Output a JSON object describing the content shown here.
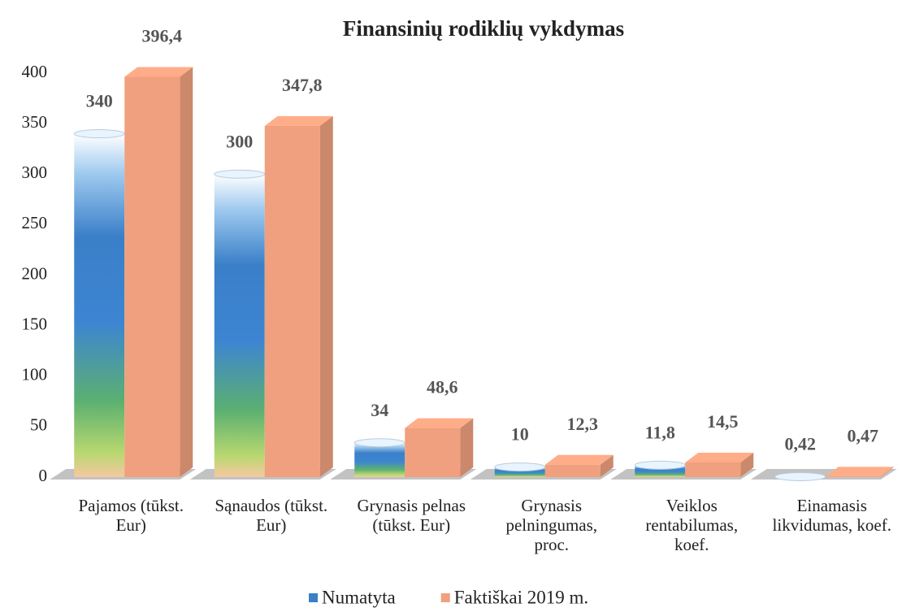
{
  "chart_data": {
    "type": "bar",
    "title": "Finansinių rodiklių vykdymas",
    "categories": [
      "Pajamos (tūkst. Eur)",
      "Sąnaudos (tūkst. Eur)",
      "Grynasis pelnas (tūkst. Eur)",
      "Grynasis pelningumas, proc.",
      "Veiklos rentabilumas, koef.",
      "Einamasis likvidumas, koef."
    ],
    "series": [
      {
        "name": "Numatyta",
        "color": "#3a7fc8",
        "values": [
          340,
          300,
          34,
          10,
          11.8,
          0.42
        ],
        "value_labels": [
          "340",
          "300",
          "34",
          "10",
          "11,8",
          "0,42"
        ]
      },
      {
        "name": "Faktiškai 2019 m.",
        "color": "#f0a07e",
        "values": [
          396.4,
          347.8,
          48.6,
          12.3,
          14.5,
          0.47
        ],
        "value_labels": [
          "396,4",
          "347,8",
          "48,6",
          "12,3",
          "14,5",
          "0,47"
        ]
      }
    ],
    "ylim": [
      0,
      400
    ],
    "yticks": [
      0,
      50,
      100,
      150,
      200,
      250,
      300,
      350,
      400
    ],
    "grid": false
  }
}
